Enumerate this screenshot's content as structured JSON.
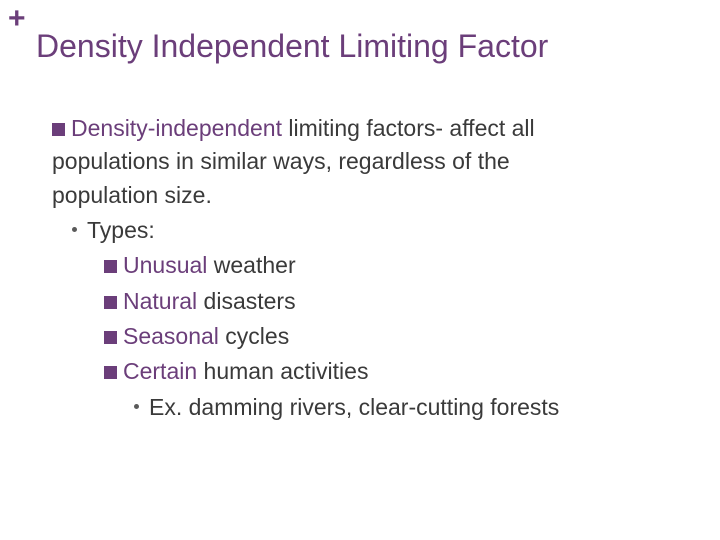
{
  "colors": {
    "accent": "#6b3e7a",
    "text_dark": "#3a3a3a",
    "text_body": "#3a3a3a",
    "bullet_dot": "#5a5a5a"
  },
  "plus_symbol": "+",
  "title": "Density Independent Limiting Factor",
  "main_bullet": {
    "term": "Density-independent",
    "rest_line1": " limiting factors- affect all",
    "line2": "populations in similar ways, regardless of the",
    "line3": "population size."
  },
  "types_label": "Types:",
  "types": [
    {
      "term": "Unusual",
      "rest": " weather"
    },
    {
      "term": "Natural",
      "rest": " disasters"
    },
    {
      "term": "Seasonal",
      "rest": " cycles"
    },
    {
      "term": "Certain",
      "rest": " human activities"
    }
  ],
  "example": {
    "prefix": "Ex.",
    "text": " damming rivers, clear-cutting forests"
  },
  "fontsize": {
    "title": 32,
    "body": 23
  }
}
